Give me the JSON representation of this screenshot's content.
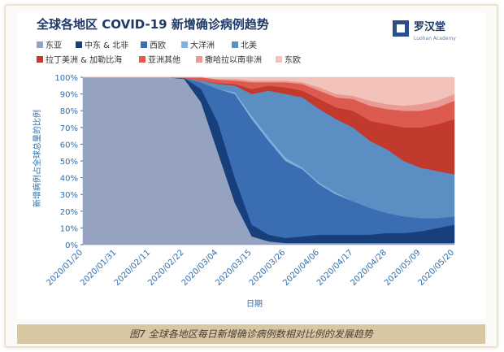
{
  "logo": {
    "name": "罗汉堂",
    "subtitle": "Luohan Academy"
  },
  "caption": "图7 全球各地区每日新增确诊病例数相对比例的发展趋势",
  "chart_data": {
    "type": "stacked-area",
    "title": "全球各地区 COVID-19 新增确诊病例趋势",
    "x_label": "日期",
    "y_label": "新增病例占全球总量的比例",
    "categories": [
      "2020/01/20",
      null,
      "2020/01/31",
      null,
      "2020/02/11",
      null,
      "2020/02/22",
      null,
      "2020/03/04",
      null,
      "2020/03/15",
      null,
      "2020/03/26",
      null,
      "2020/04/06",
      null,
      "2020/04/17",
      null,
      "2020/04/28",
      null,
      "2020/05/09",
      null,
      "2020/05/20"
    ],
    "ylim": [
      0,
      100
    ],
    "yticks": [
      {
        "value": 0,
        "label": "0%"
      },
      {
        "value": 10,
        "label": "10%"
      },
      {
        "value": 20,
        "label": "20%"
      },
      {
        "value": 30,
        "label": "30%"
      },
      {
        "value": 40,
        "label": "40%"
      },
      {
        "value": 50,
        "label": "50%"
      },
      {
        "value": 60,
        "label": "60%"
      },
      {
        "value": 70,
        "label": "70%"
      },
      {
        "value": 80,
        "label": "80%"
      },
      {
        "value": 90,
        "label": "90%"
      },
      {
        "value": 100,
        "label": "100%"
      }
    ],
    "series": [
      {
        "name": "东亚",
        "color": "#95a3c0",
        "values": [
          100,
          100,
          100,
          100,
          100,
          100,
          99,
          85,
          55,
          25,
          5,
          2,
          1,
          1,
          1,
          1,
          1,
          1,
          1,
          1,
          1,
          1,
          1
        ]
      },
      {
        "name": "中东 & 北非",
        "color": "#163f7c",
        "values": [
          0,
          0,
          0,
          0,
          0,
          0,
          0.5,
          8,
          18,
          15,
          7,
          4,
          3,
          4,
          5,
          5,
          5,
          5,
          6,
          6,
          7,
          9,
          11
        ]
      },
      {
        "name": "西欧",
        "color": "#3a6db1",
        "values": [
          0,
          0,
          0,
          0,
          0,
          0,
          0,
          4,
          20,
          50,
          63,
          56,
          46,
          40,
          30,
          24,
          20,
          16,
          12,
          10,
          8,
          6,
          5
        ]
      },
      {
        "name": "大洋洲",
        "color": "#7fb0de",
        "values": [
          0,
          0,
          0,
          0,
          0,
          0,
          0,
          0,
          0,
          1,
          2,
          2,
          2,
          1,
          1,
          1,
          0,
          0,
          0,
          0,
          0,
          0,
          0
        ]
      },
      {
        "name": "北美",
        "color": "#5b8fc3",
        "values": [
          0,
          0,
          0,
          0,
          0,
          0,
          0,
          1,
          3,
          4,
          13,
          28,
          38,
          42,
          44,
          44,
          44,
          40,
          38,
          33,
          30,
          28,
          25
        ]
      },
      {
        "name": "拉丁美洲 & 加勒比海",
        "color": "#c23a2e",
        "values": [
          0,
          0,
          0,
          0,
          0,
          0,
          0,
          0,
          0.5,
          1,
          3,
          3,
          4,
          4,
          6,
          7,
          10,
          12,
          15,
          20,
          24,
          28,
          33
        ]
      },
      {
        "name": "亚洲其他",
        "color": "#dc5a50",
        "values": [
          0,
          0,
          0,
          0,
          0,
          0,
          0.5,
          2,
          2,
          2,
          4,
          2,
          3,
          4,
          5,
          6,
          7,
          9,
          9,
          10,
          10,
          10,
          11
        ]
      },
      {
        "name": "撒哈拉以南非洲",
        "color": "#e99a92",
        "values": [
          0,
          0,
          0,
          0,
          0,
          0,
          0,
          0,
          0.5,
          1,
          1,
          1,
          1,
          1,
          2,
          2,
          2,
          3,
          3,
          3,
          4,
          4,
          4
        ]
      },
      {
        "name": "东欧",
        "color": "#f3c3bb",
        "values": [
          0,
          0,
          0,
          0,
          0,
          0,
          0,
          0,
          1,
          1,
          2,
          2,
          2,
          3,
          6,
          10,
          11,
          14,
          16,
          17,
          16,
          14,
          10
        ]
      }
    ]
  }
}
